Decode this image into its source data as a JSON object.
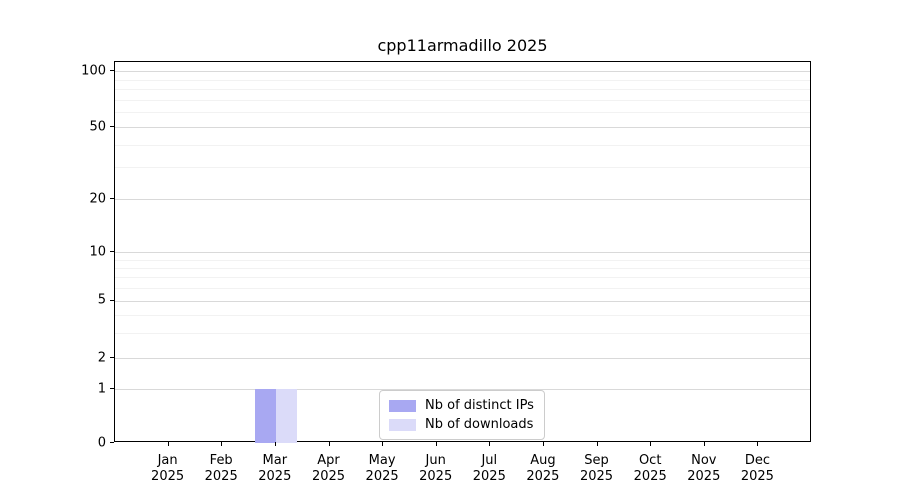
{
  "figure": {
    "title": "cpp11armadillo 2025"
  },
  "legend": {
    "items": [
      {
        "label": "Nb of distinct IPs",
        "color": "#a8a8f2"
      },
      {
        "label": "Nb of downloads",
        "color": "#dbdbf9"
      }
    ]
  },
  "chart_data": {
    "type": "bar",
    "title": "cpp11armadillo 2025",
    "categories": [
      "Jan 2025",
      "Feb 2025",
      "Mar 2025",
      "Apr 2025",
      "May 2025",
      "Jun 2025",
      "Jul 2025",
      "Aug 2025",
      "Sep 2025",
      "Oct 2025",
      "Nov 2025",
      "Dec 2025"
    ],
    "month_labels": [
      "Jan",
      "Feb",
      "Mar",
      "Apr",
      "May",
      "Jun",
      "Jul",
      "Aug",
      "Sep",
      "Oct",
      "Nov",
      "Dec"
    ],
    "year_label": "2025",
    "series": [
      {
        "name": "Nb of distinct IPs",
        "color": "#a8a8f2",
        "values": [
          0,
          0,
          1,
          0,
          0,
          0,
          0,
          0,
          0,
          0,
          0,
          0
        ]
      },
      {
        "name": "Nb of downloads",
        "color": "#dbdbf9",
        "values": [
          0,
          0,
          1,
          0,
          0,
          0,
          0,
          0,
          0,
          0,
          0,
          0
        ]
      }
    ],
    "xlabel": "",
    "ylabel": "",
    "y_scale": "symlog",
    "y_major_ticks": [
      0,
      1,
      2,
      5,
      10,
      20,
      50,
      100
    ],
    "y_minor_ticks": [
      3,
      4,
      6,
      7,
      8,
      9,
      30,
      40,
      60,
      70,
      80,
      90
    ],
    "ylim": [
      0,
      110
    ],
    "grid": true,
    "legend_position": "lower center"
  },
  "colors": {
    "grid_major": "#d9d9d9",
    "grid_minor": "#f2f2f2",
    "axis": "#000000",
    "background": "#ffffff"
  }
}
